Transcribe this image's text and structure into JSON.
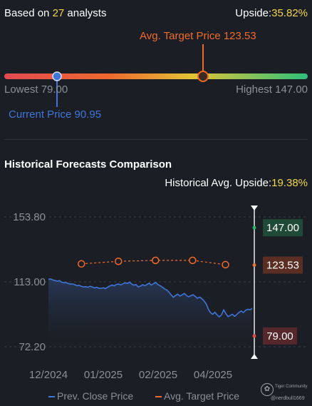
{
  "header": {
    "based_prefix": "Based on ",
    "analyst_count": "27",
    "based_suffix": " analysts",
    "upside_label": "Upside:",
    "upside_value": "35.82%"
  },
  "target_range": {
    "avg_target_label": "Avg. Target Price 123.53",
    "lowest_label": "Lowest 79.00",
    "highest_label": "Highest 147.00",
    "current_label": "Current Price 90.95",
    "low": 79.0,
    "high": 147.0,
    "current": 90.95,
    "avg_target": 123.53
  },
  "section": {
    "title": "Historical Forecasts Comparison",
    "hist_upside_label": "Historical Avg. Upside:",
    "hist_upside_value": "19.38%"
  },
  "chart_data": {
    "type": "line",
    "ylim": [
      72.2,
      153.8
    ],
    "y_ticks": [
      "153.80",
      "113.00",
      "72.20"
    ],
    "x_ticks": [
      "12/2024",
      "01/2025",
      "02/2025",
      "04/2025"
    ],
    "series": [
      {
        "name": "Prev. Close Price",
        "color": "#3f74d8",
        "values": [
          114.6,
          114.8,
          114.2,
          113.9,
          113.4,
          113.8,
          112.8,
          112.4,
          112.6,
          112.0,
          111.6,
          111.7,
          111.2,
          110.6,
          110.9,
          110.2,
          109.8,
          110.0,
          109.6,
          110.2,
          109.8,
          109.2,
          109.6,
          109.0,
          108.9,
          109.3,
          108.8,
          109.6,
          110.4,
          111.0,
          110.5,
          111.4,
          111.6,
          111.1,
          111.8,
          112.4,
          112.0,
          112.8,
          111.6,
          110.9,
          111.3,
          109.8,
          110.3,
          111.2,
          110.6,
          111.4,
          112.1,
          111.0,
          111.9,
          112.6,
          111.3,
          110.6,
          109.7,
          108.6,
          107.9,
          106.6,
          104.9,
          103.3,
          104.4,
          105.3,
          104.1,
          104.8,
          105.7,
          104.5,
          103.6,
          104.3,
          104.9,
          103.9,
          102.7,
          103.4,
          102.5,
          101.1,
          99.2,
          95.8,
          93.6,
          92.6,
          93.9,
          92.2,
          91.0,
          92.3,
          95.4,
          93.1,
          91.1,
          91.9,
          92.6,
          91.3,
          92.5,
          93.8,
          94.6,
          93.7,
          95.1,
          95.8,
          95.4,
          96.3
        ]
      },
      {
        "name": "Avg. Target Price",
        "color": "#f26a28",
        "points": [
          {
            "x": 0.16,
            "y": 124.3
          },
          {
            "x": 0.34,
            "y": 125.9
          },
          {
            "x": 0.52,
            "y": 126.5
          },
          {
            "x": 0.7,
            "y": 126.5
          },
          {
            "x": 0.86,
            "y": 123.8
          }
        ]
      }
    ],
    "forecast_labels": {
      "high": {
        "text": "147.00",
        "value": 147.0,
        "color": "#2ab26a",
        "bg": "#1f4a38"
      },
      "avg": {
        "text": "123.53",
        "value": 123.53,
        "color": "#e8703a",
        "bg": "#5a2e22"
      },
      "low": {
        "text": "79.00",
        "value": 79.0,
        "color": "#e04a4a",
        "bg": "#55262a"
      }
    },
    "legend": [
      {
        "label": "Prev. Close Price",
        "color": "#3f74d8"
      },
      {
        "label": "Avg. Target Price",
        "color": "#f26a28"
      }
    ],
    "legend_position": "bottom-center",
    "grid": true
  },
  "watermark": {
    "brand": "Tiger Community",
    "handle": "@nerdbull1669"
  }
}
